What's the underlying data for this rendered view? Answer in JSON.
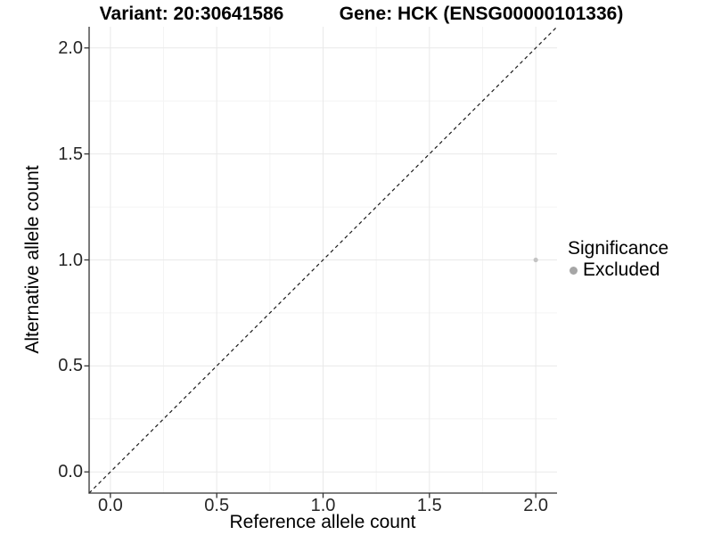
{
  "chart_data": {
    "type": "scatter",
    "title_variant": "Variant: 20:30641586",
    "title_gene": "Gene: HCK (ENSG00000101336)",
    "xlabel": "Reference allele count",
    "ylabel": "Alternative allele count",
    "xlim": [
      -0.1,
      2.1
    ],
    "ylim": [
      -0.1,
      2.1
    ],
    "x_ticks": [
      0.0,
      0.5,
      1.0,
      1.5,
      2.0
    ],
    "y_ticks": [
      0.0,
      0.5,
      1.0,
      1.5,
      2.0
    ],
    "x_tick_labels": [
      "0.0",
      "0.5",
      "1.0",
      "1.5",
      "2.0"
    ],
    "y_tick_labels": [
      "0.0",
      "0.5",
      "1.0",
      "1.5",
      "2.0"
    ],
    "minor_ticks": [
      0.25,
      0.75,
      1.25,
      1.75
    ],
    "grid": "major+minor",
    "series": [
      {
        "name": "Excluded",
        "marker": "circle",
        "color": "#c4c4c4",
        "size": 2.6,
        "points": [
          [
            2.0,
            1.0
          ]
        ]
      }
    ],
    "reference_line": {
      "shape": "y=x",
      "style": "dashed",
      "color": "#1a1a1a",
      "from": [
        -0.1,
        -0.1
      ],
      "to": [
        2.1,
        2.1
      ]
    },
    "legend": {
      "title": "Significance",
      "position": "right",
      "items": [
        {
          "label": "Excluded",
          "marker": "circle",
          "color": "#a6a6a6"
        }
      ]
    },
    "colors": {
      "axis_line": "#333333",
      "grid_major": "#e9e9e9",
      "grid_minor": "#f4f4f4",
      "tick_text": "#262626",
      "background": "#ffffff"
    }
  }
}
